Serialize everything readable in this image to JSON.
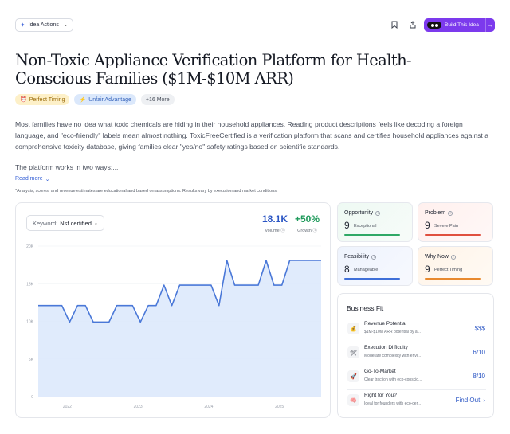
{
  "toolbar": {
    "idea_actions_label": "Idea Actions",
    "build_label": "Build This Idea"
  },
  "title": "Non-Toxic Appliance Verification Platform for Health-Conscious Families ($1M-$10M ARR)",
  "tags": [
    {
      "label": "Perfect Timing",
      "icon": "alarm-clock-icon"
    },
    {
      "label": "Unfair Advantage",
      "icon": "lightning-icon"
    },
    {
      "label": "+16 More"
    }
  ],
  "description": "Most families have no idea what toxic chemicals are hiding in their household appliances. Reading product descriptions feels like decoding a foreign language, and \"eco-friendly\" labels mean almost nothing. ToxicFreeCertified is a verification platform that scans and certifies household appliances against a comprehensive toxicity database, giving families clear \"yes/no\" safety ratings based on scientific standards.",
  "description_2": "The platform works in two ways:...",
  "read_more": "Read more",
  "disclaimer": "*Analysis, scores, and revenue estimates are educational and based on assumptions. Results vary by execution and market conditions.",
  "keyword": {
    "label": "Keyword:",
    "value": "Nsf certified"
  },
  "stats": {
    "volume": {
      "value": "18.1K",
      "label": "Volume"
    },
    "growth": {
      "value": "+50%",
      "label": "Growth"
    }
  },
  "chart_data": {
    "type": "area",
    "title": "",
    "xlabel": "",
    "ylabel": "",
    "ylim": [
      0,
      20000
    ],
    "yticks": [
      "0",
      "5K",
      "10K",
      "15K",
      "20K"
    ],
    "xticks": [
      "2022",
      "2023",
      "2024",
      "2025"
    ],
    "series": [
      {
        "values": [
          12100,
          12100,
          12100,
          12100,
          9900,
          12100,
          12100,
          9900,
          9900,
          9900,
          12100,
          12100,
          12100,
          9900,
          12100,
          12100,
          14800,
          12100,
          14800,
          14800,
          14800,
          14800,
          14800,
          12100,
          18100,
          14800,
          14800,
          14800,
          14800,
          18100,
          14800,
          14800,
          18100,
          18100,
          18100,
          18100,
          18100
        ]
      }
    ],
    "color": "#4a78d8",
    "fill": "#dbe7fb"
  },
  "metrics": [
    {
      "title": "Opportunity",
      "score": "9",
      "note": "Exceptional",
      "color": "#2fa866"
    },
    {
      "title": "Problem",
      "score": "9",
      "note": "Severe Pain",
      "color": "#e0503f"
    },
    {
      "title": "Feasibility",
      "score": "8",
      "note": "Manageable",
      "color": "#3f6fd8"
    },
    {
      "title": "Why Now",
      "score": "9",
      "note": "Perfect Timing",
      "color": "#e8892e"
    }
  ],
  "business_fit": {
    "title": "Business Fit",
    "rows": [
      {
        "name": "Revenue Potential",
        "sub": "$1M-$10M ARR potential by a...",
        "value": "$$$",
        "icon": "money-bag-icon"
      },
      {
        "name": "Execution Difficulty",
        "sub": "Moderate complexity with envi...",
        "value": "6/10",
        "icon": "hammer-wrench-icon"
      },
      {
        "name": "Go-To-Market",
        "sub": "Clear traction with eco-conscio...",
        "value": "8/10",
        "icon": "rocket-icon"
      },
      {
        "name": "Right for You?",
        "sub": "Ideal for founders with eco-cer...",
        "value": "Find Out",
        "icon": "brain-icon"
      }
    ]
  }
}
